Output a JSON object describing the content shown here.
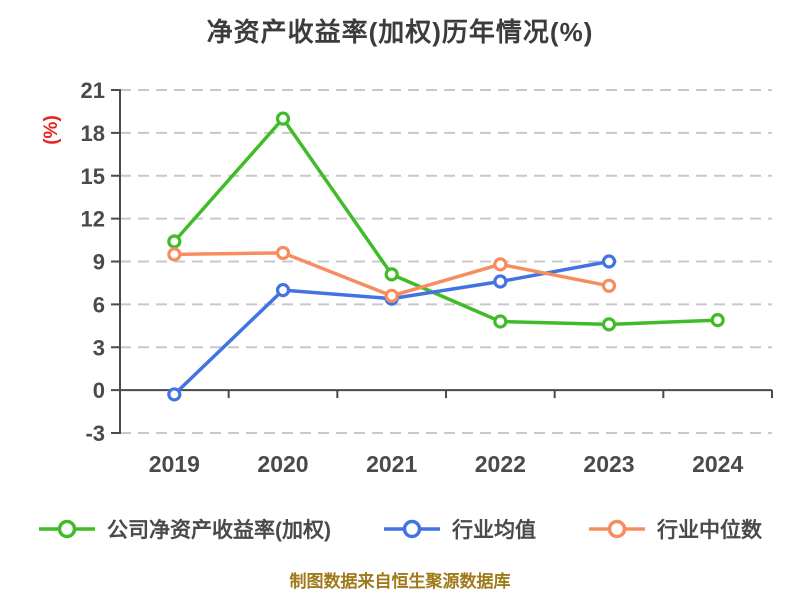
{
  "title": "净资产收益率(加权)历年情况(%)",
  "y_axis_label": "(%)",
  "footer": "制图数据来自恒生聚源数据库",
  "colors": {
    "title": "#3c3c3c",
    "axis": "#4a4a4a",
    "grid": "#c8c8c8",
    "y_axis_label": "#e62222",
    "footer": "#a0791a",
    "company": "#3fbc28",
    "industry_mean": "#4273e2",
    "industry_median": "#f78d5f",
    "marker_fill": "#ffffff"
  },
  "chart_data": {
    "type": "line",
    "title": "净资产收益率(加权)历年情况(%)",
    "xlabel": "",
    "ylabel": "(%)",
    "categories": [
      "2019",
      "2020",
      "2021",
      "2022",
      "2023",
      "2024"
    ],
    "series": [
      {
        "name": "公司净资产收益率(加权)",
        "color": "#3fbc28",
        "values": [
          10.4,
          19.0,
          8.1,
          4.8,
          4.6,
          4.9
        ]
      },
      {
        "name": "行业均值",
        "color": "#4273e2",
        "values": [
          -0.3,
          7.0,
          6.4,
          7.6,
          9.0,
          null
        ]
      },
      {
        "name": "行业中位数",
        "color": "#f78d5f",
        "values": [
          9.5,
          9.6,
          6.6,
          8.8,
          7.3,
          null
        ]
      }
    ],
    "ylim": [
      -3,
      21
    ],
    "y_ticks": [
      21,
      18,
      15,
      12,
      9,
      6,
      3,
      0,
      -3
    ],
    "grid": "horizontal-dashed",
    "zero_axis": "solid",
    "legend_position": "bottom",
    "marker_style": "circle-white-fill"
  }
}
